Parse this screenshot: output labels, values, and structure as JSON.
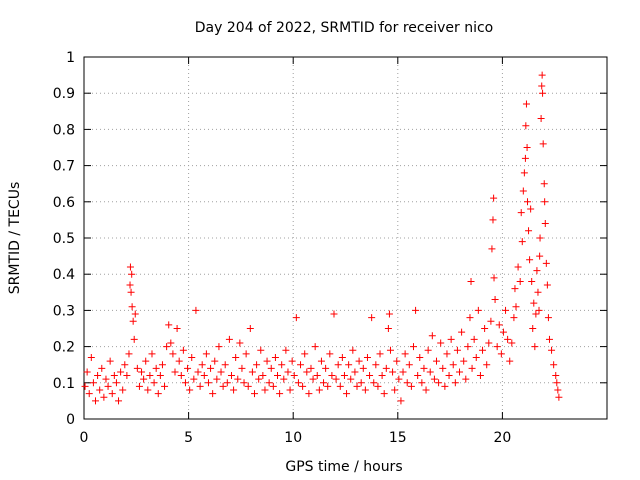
{
  "chart_data": {
    "type": "scatter",
    "title": "Day 204 of 2022, SRMTID for receiver nico",
    "xlabel": "GPS time / hours",
    "ylabel": "SRMTID / TECUs",
    "xlim": [
      0,
      25
    ],
    "ylim": [
      0,
      1
    ],
    "x_ticks": [
      0,
      5,
      10,
      15,
      20
    ],
    "x_tick_labels": [
      "0",
      "5",
      "10",
      "15",
      "20"
    ],
    "y_ticks": [
      0,
      0.1,
      0.2,
      0.3,
      0.4,
      0.5,
      0.6,
      0.7,
      0.8,
      0.9,
      1
    ],
    "y_tick_labels": [
      "0",
      "0.1",
      "0.2",
      "0.3",
      "0.4",
      "0.5",
      "0.6",
      "0.7",
      "0.8",
      "0.9",
      "1"
    ],
    "grid": true,
    "marker": "+",
    "series": [
      {
        "name": "SRMTID",
        "color": "#ff0000",
        "points": [
          [
            0.05,
            0.09
          ],
          [
            0.15,
            0.13
          ],
          [
            0.25,
            0.07
          ],
          [
            0.35,
            0.17
          ],
          [
            0.45,
            0.1
          ],
          [
            0.55,
            0.05
          ],
          [
            0.65,
            0.12
          ],
          [
            0.75,
            0.08
          ],
          [
            0.85,
            0.14
          ],
          [
            0.95,
            0.06
          ],
          [
            1.05,
            0.11
          ],
          [
            1.15,
            0.09
          ],
          [
            1.25,
            0.16
          ],
          [
            1.35,
            0.07
          ],
          [
            1.45,
            0.12
          ],
          [
            1.55,
            0.1
          ],
          [
            1.65,
            0.05
          ],
          [
            1.75,
            0.13
          ],
          [
            1.85,
            0.08
          ],
          [
            1.95,
            0.15
          ],
          [
            2.05,
            0.12
          ],
          [
            2.15,
            0.18
          ],
          [
            2.2,
            0.37
          ],
          [
            2.22,
            0.42
          ],
          [
            2.25,
            0.35
          ],
          [
            2.28,
            0.4
          ],
          [
            2.3,
            0.31
          ],
          [
            2.35,
            0.27
          ],
          [
            2.4,
            0.22
          ],
          [
            2.45,
            0.29
          ],
          [
            2.55,
            0.14
          ],
          [
            2.65,
            0.09
          ],
          [
            2.75,
            0.13
          ],
          [
            2.85,
            0.11
          ],
          [
            2.95,
            0.16
          ],
          [
            3.05,
            0.08
          ],
          [
            3.15,
            0.12
          ],
          [
            3.25,
            0.18
          ],
          [
            3.35,
            0.1
          ],
          [
            3.45,
            0.14
          ],
          [
            3.55,
            0.07
          ],
          [
            3.65,
            0.12
          ],
          [
            3.75,
            0.15
          ],
          [
            3.85,
            0.09
          ],
          [
            3.95,
            0.2
          ],
          [
            4.05,
            0.26
          ],
          [
            4.15,
            0.21
          ],
          [
            4.25,
            0.18
          ],
          [
            4.35,
            0.13
          ],
          [
            4.45,
            0.25
          ],
          [
            4.55,
            0.16
          ],
          [
            4.65,
            0.12
          ],
          [
            4.75,
            0.19
          ],
          [
            4.85,
            0.1
          ],
          [
            4.95,
            0.14
          ],
          [
            5.05,
            0.08
          ],
          [
            5.15,
            0.17
          ],
          [
            5.25,
            0.11
          ],
          [
            5.35,
            0.3
          ],
          [
            5.45,
            0.13
          ],
          [
            5.55,
            0.09
          ],
          [
            5.65,
            0.15
          ],
          [
            5.75,
            0.12
          ],
          [
            5.85,
            0.18
          ],
          [
            5.95,
            0.1
          ],
          [
            6.05,
            0.14
          ],
          [
            6.15,
            0.07
          ],
          [
            6.25,
            0.16
          ],
          [
            6.35,
            0.11
          ],
          [
            6.45,
            0.2
          ],
          [
            6.55,
            0.13
          ],
          [
            6.65,
            0.09
          ],
          [
            6.75,
            0.15
          ],
          [
            6.85,
            0.1
          ],
          [
            6.95,
            0.22
          ],
          [
            7.05,
            0.12
          ],
          [
            7.15,
            0.08
          ],
          [
            7.25,
            0.17
          ],
          [
            7.35,
            0.11
          ],
          [
            7.45,
            0.21
          ],
          [
            7.55,
            0.14
          ],
          [
            7.65,
            0.1
          ],
          [
            7.75,
            0.18
          ],
          [
            7.85,
            0.09
          ],
          [
            7.95,
            0.25
          ],
          [
            8.05,
            0.13
          ],
          [
            8.15,
            0.07
          ],
          [
            8.25,
            0.15
          ],
          [
            8.35,
            0.11
          ],
          [
            8.45,
            0.19
          ],
          [
            8.55,
            0.12
          ],
          [
            8.65,
            0.08
          ],
          [
            8.75,
            0.16
          ],
          [
            8.85,
            0.1
          ],
          [
            8.95,
            0.14
          ],
          [
            9.05,
            0.09
          ],
          [
            9.15,
            0.17
          ],
          [
            9.25,
            0.12
          ],
          [
            9.35,
            0.07
          ],
          [
            9.45,
            0.15
          ],
          [
            9.55,
            0.11
          ],
          [
            9.65,
            0.19
          ],
          [
            9.75,
            0.13
          ],
          [
            9.85,
            0.08
          ],
          [
            9.95,
            0.16
          ],
          [
            10.05,
            0.12
          ],
          [
            10.15,
            0.28
          ],
          [
            10.25,
            0.1
          ],
          [
            10.35,
            0.15
          ],
          [
            10.45,
            0.09
          ],
          [
            10.55,
            0.18
          ],
          [
            10.65,
            0.13
          ],
          [
            10.75,
            0.07
          ],
          [
            10.85,
            0.14
          ],
          [
            10.95,
            0.11
          ],
          [
            11.05,
            0.2
          ],
          [
            11.15,
            0.12
          ],
          [
            11.25,
            0.08
          ],
          [
            11.35,
            0.16
          ],
          [
            11.45,
            0.1
          ],
          [
            11.55,
            0.14
          ],
          [
            11.65,
            0.09
          ],
          [
            11.75,
            0.18
          ],
          [
            11.85,
            0.12
          ],
          [
            11.95,
            0.29
          ],
          [
            12.05,
            0.11
          ],
          [
            12.15,
            0.15
          ],
          [
            12.25,
            0.09
          ],
          [
            12.35,
            0.17
          ],
          [
            12.45,
            0.12
          ],
          [
            12.55,
            0.07
          ],
          [
            12.65,
            0.15
          ],
          [
            12.75,
            0.11
          ],
          [
            12.85,
            0.19
          ],
          [
            12.95,
            0.13
          ],
          [
            13.05,
            0.09
          ],
          [
            13.15,
            0.16
          ],
          [
            13.25,
            0.1
          ],
          [
            13.35,
            0.14
          ],
          [
            13.45,
            0.08
          ],
          [
            13.55,
            0.17
          ],
          [
            13.65,
            0.12
          ],
          [
            13.75,
            0.28
          ],
          [
            13.85,
            0.1
          ],
          [
            13.95,
            0.15
          ],
          [
            14.05,
            0.09
          ],
          [
            14.15,
            0.18
          ],
          [
            14.25,
            0.12
          ],
          [
            14.35,
            0.07
          ],
          [
            14.45,
            0.14
          ],
          [
            14.55,
            0.25
          ],
          [
            14.6,
            0.29
          ],
          [
            14.65,
            0.19
          ],
          [
            14.75,
            0.13
          ],
          [
            14.85,
            0.08
          ],
          [
            14.95,
            0.16
          ],
          [
            15.05,
            0.11
          ],
          [
            15.15,
            0.05
          ],
          [
            15.25,
            0.13
          ],
          [
            15.35,
            0.18
          ],
          [
            15.45,
            0.1
          ],
          [
            15.55,
            0.15
          ],
          [
            15.65,
            0.09
          ],
          [
            15.75,
            0.2
          ],
          [
            15.85,
            0.3
          ],
          [
            15.95,
            0.12
          ],
          [
            16.05,
            0.17
          ],
          [
            16.15,
            0.1
          ],
          [
            16.25,
            0.14
          ],
          [
            16.35,
            0.08
          ],
          [
            16.45,
            0.19
          ],
          [
            16.55,
            0.13
          ],
          [
            16.65,
            0.23
          ],
          [
            16.75,
            0.11
          ],
          [
            16.85,
            0.16
          ],
          [
            16.95,
            0.1
          ],
          [
            17.05,
            0.21
          ],
          [
            17.15,
            0.14
          ],
          [
            17.25,
            0.09
          ],
          [
            17.35,
            0.18
          ],
          [
            17.45,
            0.12
          ],
          [
            17.55,
            0.22
          ],
          [
            17.65,
            0.15
          ],
          [
            17.75,
            0.1
          ],
          [
            17.85,
            0.19
          ],
          [
            17.95,
            0.13
          ],
          [
            18.05,
            0.24
          ],
          [
            18.15,
            0.16
          ],
          [
            18.25,
            0.11
          ],
          [
            18.35,
            0.2
          ],
          [
            18.45,
            0.28
          ],
          [
            18.5,
            0.38
          ],
          [
            18.55,
            0.14
          ],
          [
            18.65,
            0.22
          ],
          [
            18.75,
            0.17
          ],
          [
            18.85,
            0.3
          ],
          [
            18.95,
            0.12
          ],
          [
            19.05,
            0.19
          ],
          [
            19.15,
            0.25
          ],
          [
            19.25,
            0.15
          ],
          [
            19.35,
            0.21
          ],
          [
            19.45,
            0.27
          ],
          [
            19.5,
            0.47
          ],
          [
            19.55,
            0.55
          ],
          [
            19.58,
            0.61
          ],
          [
            19.6,
            0.39
          ],
          [
            19.65,
            0.33
          ],
          [
            19.75,
            0.2
          ],
          [
            19.85,
            0.26
          ],
          [
            19.95,
            0.18
          ],
          [
            20.05,
            0.24
          ],
          [
            20.15,
            0.3
          ],
          [
            20.25,
            0.22
          ],
          [
            20.35,
            0.16
          ],
          [
            20.45,
            0.21
          ],
          [
            20.55,
            0.28
          ],
          [
            20.6,
            0.36
          ],
          [
            20.65,
            0.31
          ],
          [
            20.75,
            0.42
          ],
          [
            20.85,
            0.38
          ],
          [
            20.9,
            0.57
          ],
          [
            20.95,
            0.49
          ],
          [
            21.0,
            0.63
          ],
          [
            21.05,
            0.68
          ],
          [
            21.1,
            0.72
          ],
          [
            21.12,
            0.81
          ],
          [
            21.15,
            0.87
          ],
          [
            21.18,
            0.75
          ],
          [
            21.2,
            0.6
          ],
          [
            21.25,
            0.52
          ],
          [
            21.3,
            0.44
          ],
          [
            21.35,
            0.58
          ],
          [
            21.4,
            0.38
          ],
          [
            21.45,
            0.25
          ],
          [
            21.5,
            0.32
          ],
          [
            21.55,
            0.2
          ],
          [
            21.6,
            0.29
          ],
          [
            21.65,
            0.41
          ],
          [
            21.7,
            0.35
          ],
          [
            21.75,
            0.3
          ],
          [
            21.78,
            0.45
          ],
          [
            21.8,
            0.5
          ],
          [
            21.85,
            0.83
          ],
          [
            21.88,
            0.92
          ],
          [
            21.9,
            0.95
          ],
          [
            21.92,
            0.9
          ],
          [
            21.95,
            0.76
          ],
          [
            22.0,
            0.65
          ],
          [
            22.02,
            0.6
          ],
          [
            22.05,
            0.54
          ],
          [
            22.1,
            0.43
          ],
          [
            22.15,
            0.37
          ],
          [
            22.2,
            0.28
          ],
          [
            22.25,
            0.22
          ],
          [
            22.35,
            0.19
          ],
          [
            22.45,
            0.15
          ],
          [
            22.55,
            0.12
          ],
          [
            22.6,
            0.1
          ],
          [
            22.65,
            0.08
          ],
          [
            22.7,
            0.06
          ]
        ]
      }
    ]
  }
}
